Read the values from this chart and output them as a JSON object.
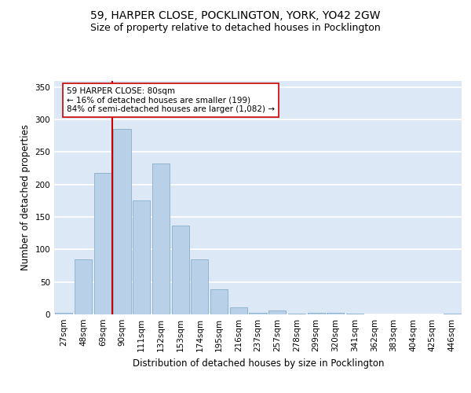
{
  "title_line1": "59, HARPER CLOSE, POCKLINGTON, YORK, YO42 2GW",
  "title_line2": "Size of property relative to detached houses in Pocklington",
  "xlabel": "Distribution of detached houses by size in Pocklington",
  "ylabel": "Number of detached properties",
  "categories": [
    "27sqm",
    "48sqm",
    "69sqm",
    "90sqm",
    "111sqm",
    "132sqm",
    "153sqm",
    "174sqm",
    "195sqm",
    "216sqm",
    "237sqm",
    "257sqm",
    "278sqm",
    "299sqm",
    "320sqm",
    "341sqm",
    "362sqm",
    "383sqm",
    "404sqm",
    "425sqm",
    "446sqm"
  ],
  "values": [
    2,
    85,
    218,
    285,
    176,
    232,
    137,
    85,
    39,
    11,
    2,
    6,
    1,
    2,
    3,
    1,
    0,
    0,
    0,
    0,
    1
  ],
  "bar_color": "#b8d0e8",
  "bar_edge_color": "#8aaec8",
  "background_color": "#dce8f5",
  "grid_color": "#ffffff",
  "fig_background": "#ffffff",
  "vline_x": 2.5,
  "vline_color": "#cc0000",
  "annotation_text": "59 HARPER CLOSE: 80sqm\n← 16% of detached houses are smaller (199)\n84% of semi-detached houses are larger (1,082) →",
  "annotation_box_facecolor": "#ffffff",
  "annotation_box_edgecolor": "#cc0000",
  "ylim": [
    0,
    360
  ],
  "yticks": [
    0,
    50,
    100,
    150,
    200,
    250,
    300,
    350
  ],
  "title_fontsize": 10,
  "subtitle_fontsize": 9,
  "axis_label_fontsize": 8.5,
  "tick_fontsize": 7.5,
  "annotation_fontsize": 7.5,
  "footer_fontsize": 6.5
}
